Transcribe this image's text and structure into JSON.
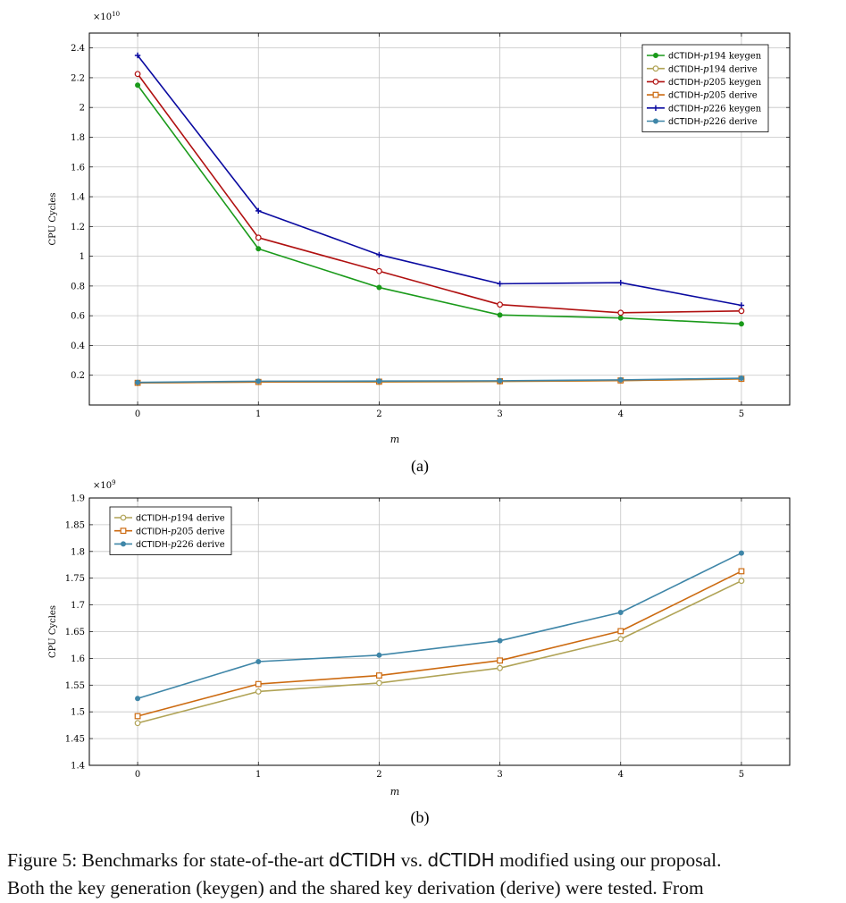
{
  "chart_data": [
    {
      "type": "line",
      "panel_label": "(a)",
      "exponent_label": "×10",
      "exponent_power": "10",
      "xlabel": "m",
      "ylabel": "CPU Cycles",
      "x": [
        0,
        1,
        2,
        3,
        4,
        5
      ],
      "x_ticks": [
        "0",
        "1",
        "2",
        "3",
        "4",
        "5"
      ],
      "xlim": [
        -0.4,
        5.4
      ],
      "ylim": [
        0,
        2.5
      ],
      "y_ticks": [
        "0.2",
        "0.4",
        "0.6",
        "0.8",
        "1",
        "1.2",
        "1.4",
        "1.6",
        "1.8",
        "2",
        "2.2",
        "2.4"
      ],
      "y_tick_values": [
        0.2,
        0.4,
        0.6,
        0.8,
        1.0,
        1.2,
        1.4,
        1.6,
        1.8,
        2.0,
        2.2,
        2.4
      ],
      "grid": true,
      "legend_position": "top-right",
      "series": [
        {
          "name_prefix": "dCTIDH-",
          "name_p": "p",
          "name_suffix": "194 keygen",
          "color": "#1a9a1a",
          "marker": "filled-circle",
          "values": [
            2.15,
            1.05,
            0.79,
            0.605,
            0.585,
            0.545
          ]
        },
        {
          "name_prefix": "dCTIDH-",
          "name_p": "p",
          "name_suffix": "194 derive",
          "color": "#b0a356",
          "marker": "open-circle",
          "values": [
            0.148,
            0.154,
            0.155,
            0.158,
            0.164,
            0.175
          ]
        },
        {
          "name_prefix": "dCTIDH-",
          "name_p": "p",
          "name_suffix": "205 keygen",
          "color": "#b01010",
          "marker": "open-circle",
          "values": [
            2.225,
            1.125,
            0.9,
            0.675,
            0.62,
            0.632
          ]
        },
        {
          "name_prefix": "dCTIDH-",
          "name_p": "p",
          "name_suffix": "205 derive",
          "color": "#cc6a10",
          "marker": "open-square",
          "values": [
            0.149,
            0.155,
            0.157,
            0.16,
            0.165,
            0.176
          ]
        },
        {
          "name_prefix": "dCTIDH-",
          "name_p": "p",
          "name_suffix": "226 keygen",
          "color": "#0a0aa0",
          "marker": "plus",
          "values": [
            2.35,
            1.305,
            1.01,
            0.815,
            0.822,
            0.67
          ]
        },
        {
          "name_prefix": "dCTIDH-",
          "name_p": "p",
          "name_suffix": "226 derive",
          "color": "#3f86a8",
          "marker": "filled-circle",
          "values": [
            0.152,
            0.16,
            0.161,
            0.163,
            0.169,
            0.18
          ]
        }
      ]
    },
    {
      "type": "line",
      "panel_label": "(b)",
      "exponent_label": "×10",
      "exponent_power": "9",
      "xlabel": "m",
      "ylabel": "CPU Cycles",
      "x": [
        0,
        1,
        2,
        3,
        4,
        5
      ],
      "x_ticks": [
        "0",
        "1",
        "2",
        "3",
        "4",
        "5"
      ],
      "xlim": [
        -0.4,
        5.4
      ],
      "ylim": [
        1.4,
        1.9
      ],
      "y_ticks": [
        "1.4",
        "1.45",
        "1.5",
        "1.55",
        "1.6",
        "1.65",
        "1.7",
        "1.75",
        "1.8",
        "1.85",
        "1.9"
      ],
      "y_tick_values": [
        1.4,
        1.45,
        1.5,
        1.55,
        1.6,
        1.65,
        1.7,
        1.75,
        1.8,
        1.85,
        1.9
      ],
      "grid": true,
      "legend_position": "top-left",
      "series": [
        {
          "name_prefix": "dCTIDH-",
          "name_p": "p",
          "name_suffix": "194 derive",
          "color": "#b0a356",
          "marker": "open-circle",
          "values": [
            1.479,
            1.538,
            1.554,
            1.582,
            1.636,
            1.745
          ]
        },
        {
          "name_prefix": "dCTIDH-",
          "name_p": "p",
          "name_suffix": "205 derive",
          "color": "#cc6a10",
          "marker": "open-square",
          "values": [
            1.492,
            1.552,
            1.568,
            1.596,
            1.651,
            1.763
          ]
        },
        {
          "name_prefix": "dCTIDH-",
          "name_p": "p",
          "name_suffix": "226 derive",
          "color": "#3f86a8",
          "marker": "filled-circle",
          "values": [
            1.525,
            1.594,
            1.606,
            1.633,
            1.686,
            1.797
          ]
        }
      ]
    }
  ],
  "caption": {
    "line1_part1": "Figure 5: Benchmarks for state-of-the-art ",
    "line1_code1": "dCTIDH",
    "line1_part2": " vs. ",
    "line1_code2": "dCTIDH",
    "line1_part3": " modified using our proposal.",
    "line2": "Both the key generation (keygen) and the shared key derivation (derive) were tested. From"
  }
}
